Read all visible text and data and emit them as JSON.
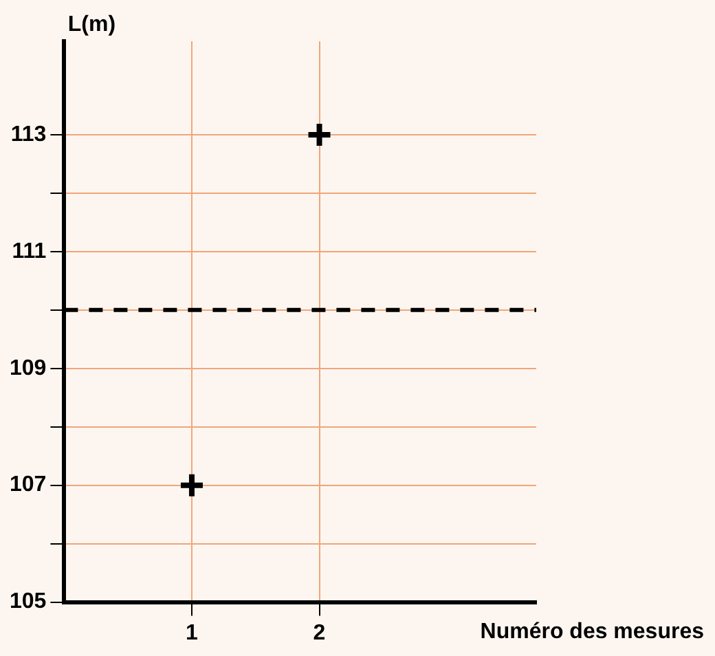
{
  "chart_data": {
    "type": "scatter",
    "xlabel": "Numéro des mesures",
    "ylabel": "L(m)",
    "x": [
      1,
      2
    ],
    "values": [
      107,
      113
    ],
    "color": "#000000",
    "marker": "cross",
    "xlim": [
      0,
      3.7
    ],
    "xticks": [
      1,
      2
    ],
    "ylim": [
      105,
      114.6
    ],
    "yticks": [
      105,
      {
        "value": 106,
        "label": null
      },
      107,
      {
        "value": 108,
        "label": null
      },
      109,
      {
        "value": 110,
        "label": null
      },
      111,
      {
        "value": 112,
        "label": null
      },
      113
    ],
    "ref_lines": [
      {
        "axis": "y",
        "value": 110,
        "color": "#000000",
        "line_style": "dashed"
      }
    ],
    "grid": true
  }
}
